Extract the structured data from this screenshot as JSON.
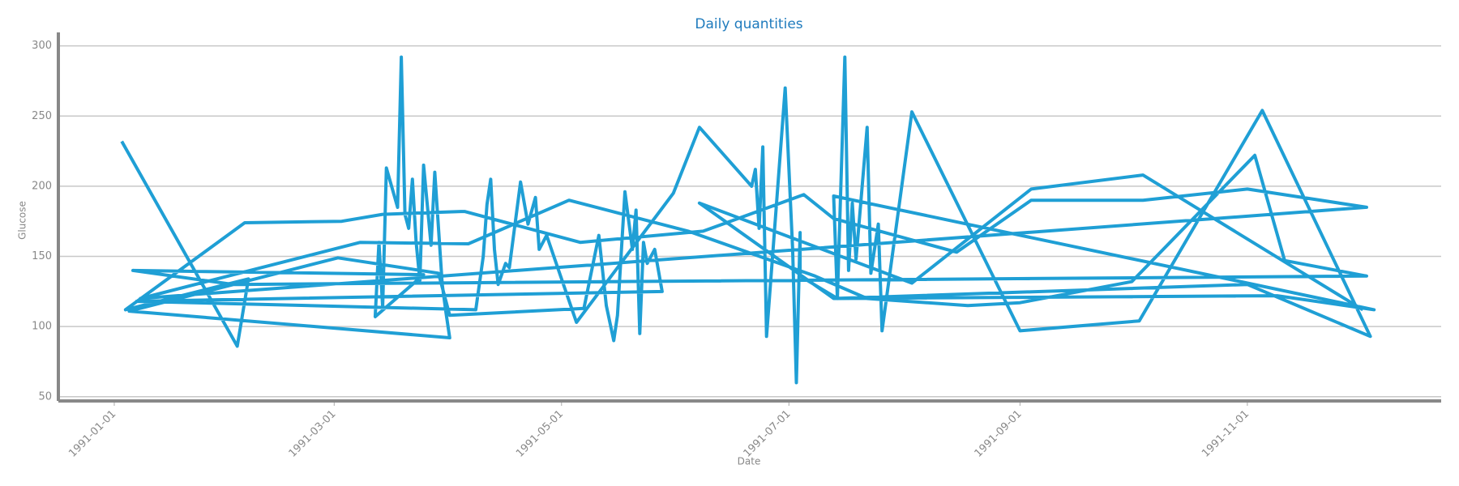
{
  "chart_data": {
    "type": "line",
    "title": "Daily quantities",
    "x_label": "Date",
    "y_label": "Glucose",
    "x": [
      "1991-01-03",
      "1991-02-03",
      "1991-02-06",
      "1991-01-04",
      "1991-02-05",
      "1991-03-03",
      "1991-03-14",
      "1991-04-04",
      "1991-04-05",
      "1991-05-06",
      "1991-06-08",
      "1991-07-05",
      "1991-07-13",
      "1991-08-15",
      "1991-09-04",
      "1991-10-04",
      "1991-11-01",
      "1991-12-03",
      "1991-01-08",
      "1991-03-08",
      "1991-04-06",
      "1991-05-03",
      "1991-06-04",
      "1991-07-08",
      "1991-07-22",
      "1991-08-18",
      "1991-09-01",
      "1991-10-01",
      "1991-11-03",
      "1991-11-11",
      "1991-12-03",
      "1991-02-02",
      "1991-01-06",
      "1991-03-25",
      "1991-03-12",
      "1991-03-13",
      "1991-03-14",
      "1991-03-15",
      "1991-03-18",
      "1991-03-19",
      "1991-03-20",
      "1991-03-21",
      "1991-03-22",
      "1991-03-23",
      "1991-03-24",
      "1991-03-25",
      "1991-03-27",
      "1991-03-28",
      "1991-03-30",
      "1991-03-31",
      "1991-04-01",
      "1991-01-05",
      "1991-03-02",
      "1991-03-29",
      "1991-04-01",
      "1991-05-07",
      "1991-05-11",
      "1991-05-13",
      "1991-05-15",
      "1991-05-16",
      "1991-05-18",
      "1991-05-20",
      "1991-05-21",
      "1991-05-22",
      "1991-05-23",
      "1991-05-24",
      "1991-05-26",
      "1991-05-28",
      "1991-01-07",
      "1991-04-08",
      "1991-04-10",
      "1991-04-11",
      "1991-04-12",
      "1991-04-13",
      "1991-04-14",
      "1991-04-16",
      "1991-04-17",
      "1991-04-20",
      "1991-04-22",
      "1991-04-24",
      "1991-04-25",
      "1991-04-27",
      "1991-05-05",
      "1991-05-31",
      "1991-06-07",
      "1991-06-21",
      "1991-06-22",
      "1991-06-23",
      "1991-06-24",
      "1991-06-25",
      "1991-06-30",
      "1991-07-02",
      "1991-07-03",
      "1991-07-04",
      "1991-07-04",
      "1991-07-14",
      "1991-07-13",
      "1991-12-05",
      "1991-11-09",
      "1991-07-14",
      "1991-07-16",
      "1991-07-17",
      "1991-07-18",
      "1991-07-19",
      "1991-07-22",
      "1991-07-23",
      "1991-07-25",
      "1991-07-26",
      "1991-08-03",
      "1991-09-01",
      "1991-10-03",
      "1991-11-05",
      "1991-12-04",
      "1991-11-01",
      "1991-07-13",
      "1991-06-07",
      "1991-08-03",
      "1991-09-04",
      "1991-10-04",
      "1991-12-02"
    ],
    "series": [
      {
        "name": "Glucose",
        "color": "#1f9fd5",
        "values": [
          232,
          86,
          134,
          112,
          174,
          175,
          180,
          182,
          182,
          160,
          168,
          194,
          177,
          153,
          190,
          190,
          198,
          185,
          120,
          160,
          159,
          190,
          168,
          136,
          120,
          115,
          117,
          132,
          222,
          147,
          136,
          130,
          140,
          137,
          107,
          160,
          114,
          213,
          185,
          292,
          180,
          170,
          205,
          160,
          133,
          215,
          158,
          210,
          130,
          110,
          92,
          111,
          149,
          138,
          108,
          113,
          165,
          115,
          90,
          108,
          196,
          155,
          183,
          95,
          160,
          145,
          155,
          125,
          118,
          112,
          150,
          187,
          205,
          155,
          130,
          145,
          142,
          203,
          173,
          192,
          155,
          165,
          103,
          195,
          242,
          200,
          212,
          170,
          228,
          93,
          270,
          155,
          60,
          167,
          136,
          120,
          193,
          112,
          122,
          120,
          292,
          140,
          188,
          148,
          242,
          138,
          173,
          97,
          253,
          97,
          104,
          254,
          93,
          130,
          120,
          188,
          131,
          198,
          208,
          112
        ]
      }
    ],
    "xlim": [
      "1990-12-17",
      "1991-12-23"
    ],
    "xticks": [
      "1991-01-01",
      "1991-03-01",
      "1991-05-01",
      "1991-07-01",
      "1991-09-01",
      "1991-11-01"
    ],
    "ylim": [
      47,
      305
    ],
    "yticks": [
      50,
      100,
      150,
      200,
      250,
      300
    ],
    "grid": true
  }
}
